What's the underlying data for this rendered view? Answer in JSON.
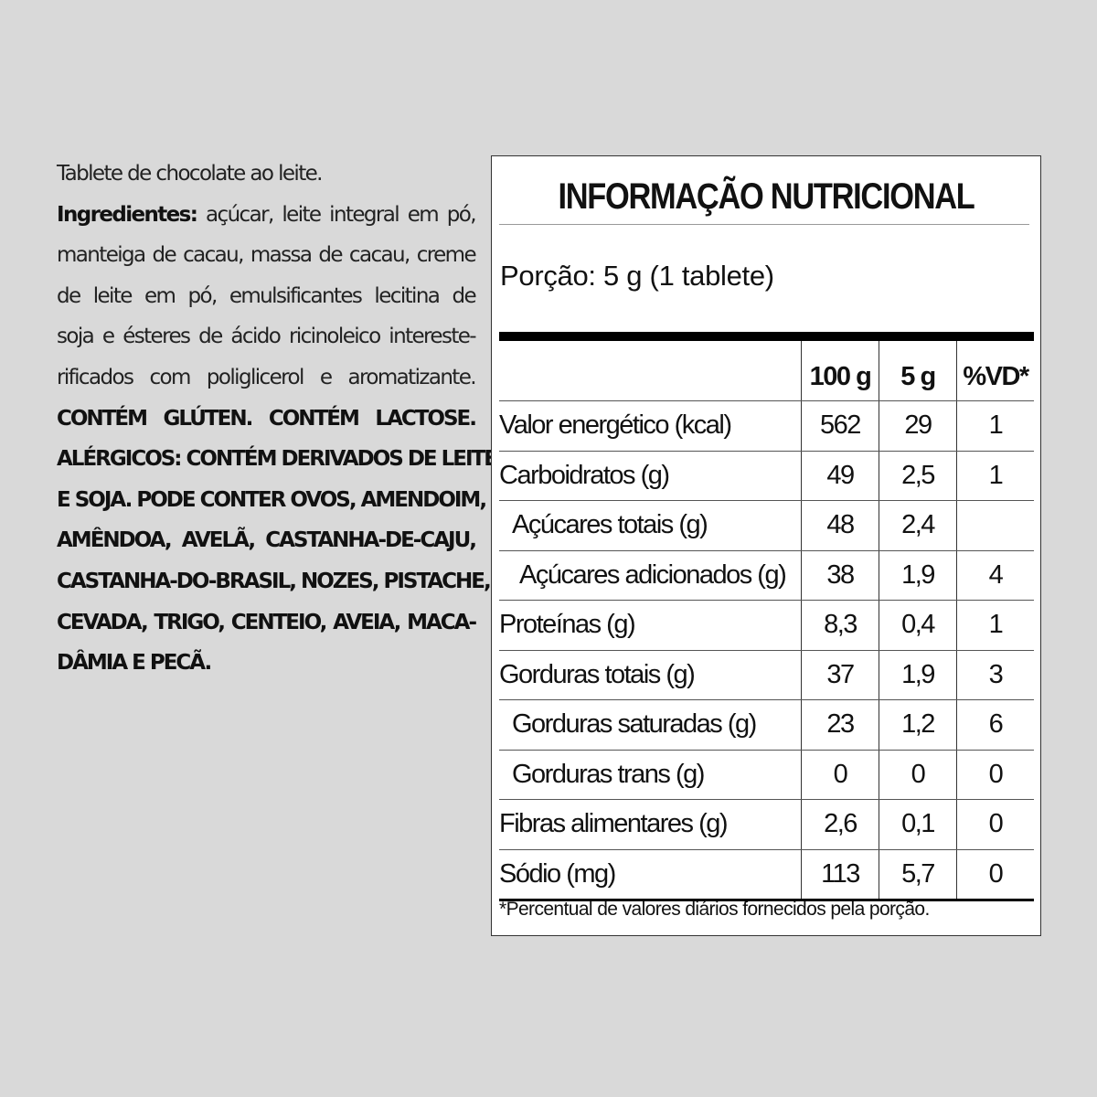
{
  "ingredients": {
    "lines": [
      {
        "bold": "",
        "text": "Tablete de chocolate ao leite."
      },
      {
        "bold": "Ingredientes:",
        "text": " açúcar, leite integral em pó,"
      },
      {
        "bold": "",
        "text": "manteiga de cacau, massa de cacau, creme"
      },
      {
        "bold": "",
        "text": "de leite em pó, emulsificantes lecitina de"
      },
      {
        "bold": "",
        "text": "soja e ésteres de ácido ricinoleico intereste-"
      },
      {
        "bold": "",
        "text": "rificados com poliglicerol e aromatizante."
      }
    ],
    "caps_lines": [
      "CONTÉM GLÚTEN. CONTÉM LACTOSE.",
      "ALÉRGICOS: CONTÉM DERIVADOS DE LEITE",
      "E SOJA. PODE CONTER OVOS, AMENDOIM,",
      "AMÊNDOA, AVELÃ, CASTANHA-DE-CAJU,",
      "CASTANHA-DO-BRASIL, NOZES, PISTACHE,",
      "CEVADA, TRIGO, CENTEIO, AVEIA, MACA-",
      "DÂMIA E PECÃ."
    ]
  },
  "nutrition": {
    "title": "INFORMAÇÃO NUTRICIONAL",
    "portion": "Porção: 5 g (1 tablete)",
    "headers": [
      "",
      "100 g",
      "5 g",
      "%VD*"
    ],
    "rows": [
      {
        "label": "Valor energético (kcal)",
        "indent": 0,
        "values": [
          "562",
          "29",
          "1"
        ]
      },
      {
        "label": "Carboidratos (g)",
        "indent": 0,
        "values": [
          "49",
          "2,5",
          "1"
        ]
      },
      {
        "label": "Açúcares totais (g)",
        "indent": 1,
        "values": [
          "48",
          "2,4",
          ""
        ]
      },
      {
        "label": "Açúcares adicionados (g)",
        "indent": 2,
        "values": [
          "38",
          "1,9",
          "4"
        ]
      },
      {
        "label": "Proteínas (g)",
        "indent": 0,
        "values": [
          "8,3",
          "0,4",
          "1"
        ]
      },
      {
        "label": "Gorduras totais (g)",
        "indent": 0,
        "values": [
          "37",
          "1,9",
          "3"
        ]
      },
      {
        "label": "Gorduras saturadas (g)",
        "indent": 1,
        "values": [
          "23",
          "1,2",
          "6"
        ]
      },
      {
        "label": "Gorduras trans (g)",
        "indent": 1,
        "values": [
          "0",
          "0",
          "0"
        ]
      },
      {
        "label": "Fibras alimentares (g)",
        "indent": 0,
        "values": [
          "2,6",
          "0,1",
          "0"
        ]
      },
      {
        "label": "Sódio (mg)",
        "indent": 0,
        "values": [
          "113",
          "5,7",
          "0"
        ]
      }
    ],
    "footnote": "*Percentual de valores diários fornecidos pela porção."
  }
}
